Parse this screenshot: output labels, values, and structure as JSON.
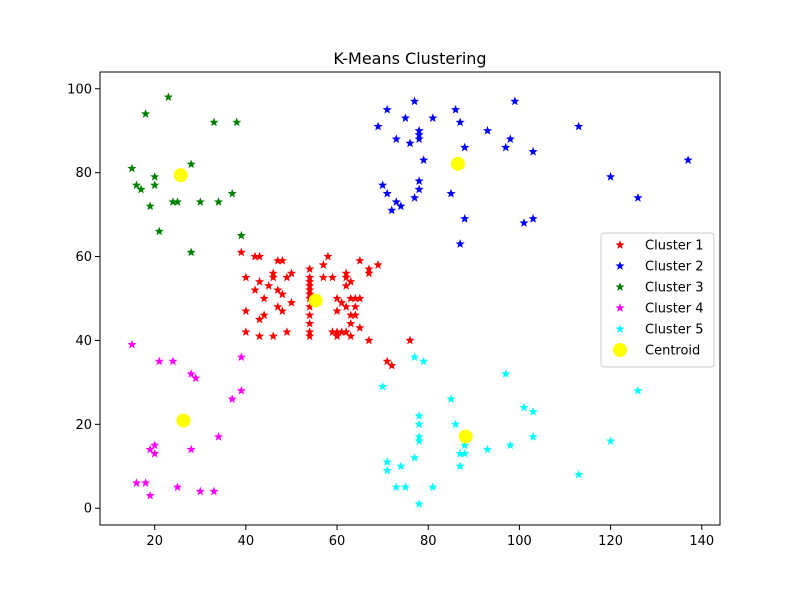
{
  "chart_data": {
    "type": "scatter",
    "title": "K-Means Clustering",
    "xlabel": "",
    "ylabel": "",
    "xlim": [
      8,
      144
    ],
    "ylim": [
      -4,
      104
    ],
    "x_ticks": [
      20,
      40,
      60,
      80,
      100,
      120,
      140
    ],
    "y_ticks": [
      0,
      20,
      40,
      60,
      80,
      100
    ],
    "x_tick_labels": [
      "20",
      "40",
      "60",
      "80",
      "100",
      "120",
      "140"
    ],
    "y_tick_labels": [
      "0",
      "20",
      "40",
      "60",
      "80",
      "100"
    ],
    "grid": false,
    "legend_position": "center-right",
    "series": [
      {
        "name": "Cluster 1",
        "color": "#ff0000",
        "marker": "star",
        "points": [
          [
            39,
            61
          ],
          [
            40,
            55
          ],
          [
            40,
            47
          ],
          [
            40,
            42
          ],
          [
            42,
            52
          ],
          [
            42,
            60
          ],
          [
            43,
            60
          ],
          [
            43,
            54
          ],
          [
            43,
            45
          ],
          [
            43,
            41
          ],
          [
            44,
            50
          ],
          [
            44,
            46
          ],
          [
            45,
            53
          ],
          [
            46,
            56
          ],
          [
            46,
            55
          ],
          [
            46,
            41
          ],
          [
            47,
            59
          ],
          [
            47,
            52
          ],
          [
            47,
            48
          ],
          [
            48,
            59
          ],
          [
            48,
            51
          ],
          [
            48,
            47
          ],
          [
            49,
            55
          ],
          [
            49,
            42
          ],
          [
            50,
            56
          ],
          [
            50,
            49
          ],
          [
            54,
            57
          ],
          [
            54,
            55
          ],
          [
            54,
            54
          ],
          [
            54,
            53
          ],
          [
            54,
            52
          ],
          [
            54,
            51
          ],
          [
            54,
            50
          ],
          [
            54,
            48
          ],
          [
            54,
            46
          ],
          [
            54,
            44
          ],
          [
            54,
            42
          ],
          [
            54,
            41
          ],
          [
            57,
            58
          ],
          [
            57,
            55
          ],
          [
            58,
            60
          ],
          [
            59,
            55
          ],
          [
            59,
            42
          ],
          [
            60,
            50
          ],
          [
            60,
            47
          ],
          [
            60,
            42
          ],
          [
            60,
            41
          ],
          [
            61,
            49
          ],
          [
            61,
            42
          ],
          [
            62,
            56
          ],
          [
            62,
            55
          ],
          [
            62,
            53
          ],
          [
            62,
            48
          ],
          [
            62,
            42
          ],
          [
            63,
            54
          ],
          [
            63,
            50
          ],
          [
            63,
            46
          ],
          [
            63,
            44
          ],
          [
            63,
            41
          ],
          [
            64,
            50
          ],
          [
            64,
            48
          ],
          [
            64,
            46
          ],
          [
            65,
            59
          ],
          [
            65,
            50
          ],
          [
            65,
            43
          ],
          [
            67,
            57
          ],
          [
            67,
            56
          ],
          [
            67,
            40
          ],
          [
            69,
            58
          ],
          [
            71,
            35
          ],
          [
            72,
            34
          ],
          [
            76,
            40
          ]
        ]
      },
      {
        "name": "Cluster 2",
        "color": "#0000ff",
        "marker": "star",
        "points": [
          [
            69,
            91
          ],
          [
            70,
            77
          ],
          [
            71,
            95
          ],
          [
            71,
            75
          ],
          [
            72,
            71
          ],
          [
            73,
            88
          ],
          [
            73,
            73
          ],
          [
            74,
            72
          ],
          [
            75,
            93
          ],
          [
            76,
            87
          ],
          [
            77,
            97
          ],
          [
            77,
            74
          ],
          [
            78,
            90
          ],
          [
            78,
            89
          ],
          [
            78,
            88
          ],
          [
            78,
            78
          ],
          [
            78,
            76
          ],
          [
            79,
            83
          ],
          [
            81,
            93
          ],
          [
            85,
            75
          ],
          [
            86,
            95
          ],
          [
            87,
            92
          ],
          [
            87,
            63
          ],
          [
            88,
            86
          ],
          [
            88,
            69
          ],
          [
            93,
            90
          ],
          [
            97,
            86
          ],
          [
            98,
            88
          ],
          [
            99,
            97
          ],
          [
            101,
            68
          ],
          [
            103,
            85
          ],
          [
            103,
            69
          ],
          [
            113,
            91
          ],
          [
            120,
            79
          ],
          [
            126,
            74
          ],
          [
            137,
            83
          ]
        ]
      },
      {
        "name": "Cluster 3",
        "color": "#008000",
        "marker": "star",
        "points": [
          [
            15,
            81
          ],
          [
            16,
            77
          ],
          [
            17,
            76
          ],
          [
            18,
            94
          ],
          [
            19,
            72
          ],
          [
            20,
            79
          ],
          [
            20,
            77
          ],
          [
            21,
            66
          ],
          [
            23,
            98
          ],
          [
            24,
            73
          ],
          [
            25,
            73
          ],
          [
            28,
            82
          ],
          [
            28,
            61
          ],
          [
            30,
            73
          ],
          [
            33,
            92
          ],
          [
            34,
            73
          ],
          [
            37,
            75
          ],
          [
            38,
            92
          ],
          [
            39,
            65
          ]
        ]
      },
      {
        "name": "Cluster 4",
        "color": "#ff00ff",
        "marker": "star",
        "points": [
          [
            15,
            39
          ],
          [
            16,
            6
          ],
          [
            18,
            6
          ],
          [
            19,
            3
          ],
          [
            19,
            14
          ],
          [
            20,
            15
          ],
          [
            20,
            13
          ],
          [
            21,
            35
          ],
          [
            24,
            35
          ],
          [
            25,
            5
          ],
          [
            28,
            32
          ],
          [
            28,
            14
          ],
          [
            29,
            31
          ],
          [
            30,
            4
          ],
          [
            33,
            4
          ],
          [
            34,
            17
          ],
          [
            37,
            26
          ],
          [
            39,
            36
          ],
          [
            39,
            28
          ]
        ]
      },
      {
        "name": "Cluster 5",
        "color": "#00ffff",
        "marker": "star",
        "points": [
          [
            70,
            29
          ],
          [
            71,
            11
          ],
          [
            71,
            9
          ],
          [
            73,
            5
          ],
          [
            74,
            10
          ],
          [
            75,
            5
          ],
          [
            77,
            36
          ],
          [
            77,
            12
          ],
          [
            78,
            22
          ],
          [
            78,
            20
          ],
          [
            78,
            17
          ],
          [
            78,
            16
          ],
          [
            78,
            1
          ],
          [
            79,
            35
          ],
          [
            81,
            5
          ],
          [
            85,
            26
          ],
          [
            86,
            20
          ],
          [
            87,
            13
          ],
          [
            87,
            10
          ],
          [
            88,
            15
          ],
          [
            88,
            13
          ],
          [
            93,
            14
          ],
          [
            97,
            32
          ],
          [
            98,
            15
          ],
          [
            101,
            24
          ],
          [
            103,
            23
          ],
          [
            103,
            17
          ],
          [
            113,
            8
          ],
          [
            120,
            16
          ],
          [
            126,
            28
          ]
        ]
      },
      {
        "name": "Centroid",
        "color": "#ffff00",
        "marker": "circle",
        "points": [
          [
            55.3,
            49.5
          ],
          [
            86.5,
            82.1
          ],
          [
            25.7,
            79.4
          ],
          [
            26.3,
            20.9
          ],
          [
            88.2,
            17.1
          ]
        ]
      }
    ]
  }
}
